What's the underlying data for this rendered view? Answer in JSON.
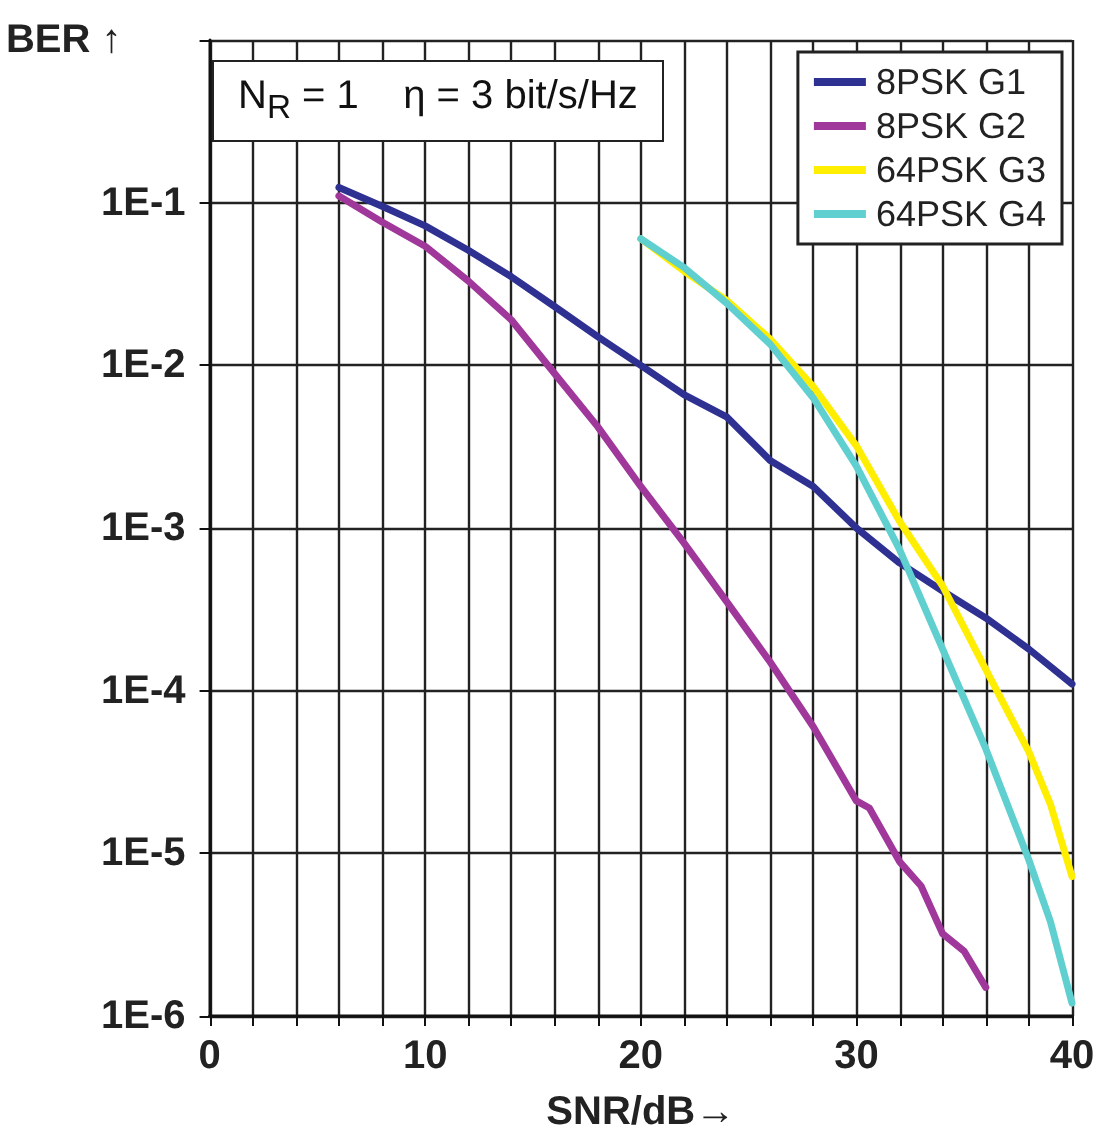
{
  "chart_data": {
    "type": "line",
    "xlabel": "SNR/dB→",
    "ylabel": "BER ↑",
    "annotations": [
      "N$_{R}$ = 1    η = 3 bit/s/Hz"
    ],
    "xlim": [
      0,
      40
    ],
    "xticks": [
      0,
      {
        "value": 2,
        "label": null
      },
      {
        "value": 4,
        "label": null
      },
      {
        "value": 6,
        "label": null
      },
      {
        "value": 8,
        "label": null
      },
      10,
      {
        "value": 12,
        "label": null
      },
      {
        "value": 14,
        "label": null
      },
      {
        "value": 16,
        "label": null
      },
      {
        "value": 18,
        "label": null
      },
      20,
      {
        "value": 22,
        "label": null
      },
      {
        "value": 24,
        "label": null
      },
      {
        "value": 26,
        "label": null
      },
      {
        "value": 28,
        "label": null
      },
      30,
      {
        "value": 32,
        "label": null
      },
      {
        "value": 34,
        "label": null
      },
      {
        "value": 36,
        "label": null
      },
      {
        "value": 38,
        "label": null
      },
      40
    ],
    "ylim": [
      1e-06,
      1
    ],
    "log": "y",
    "yticks": [
      {
        "value": 1e-06,
        "label": "1E-6"
      },
      {
        "value": 1e-05,
        "label": "1E-5"
      },
      {
        "value": 0.0001,
        "label": "1E-4"
      },
      {
        "value": 0.001,
        "label": "1E-3"
      },
      {
        "value": 0.01,
        "label": "1E-2"
      },
      {
        "value": 0.1,
        "label": "1E-1"
      },
      {
        "value": 1,
        "label": null
      }
    ],
    "grid": true,
    "legend": "top right",
    "marker": "none",
    "line_style": "solid",
    "series": [
      {
        "name": "8PSK G1",
        "color": "#2e3192",
        "x": [
          6,
          8,
          10,
          12,
          14,
          16,
          18,
          20,
          22,
          24,
          26,
          28,
          30,
          32,
          34,
          36,
          38,
          40
        ],
        "values": [
          0.124,
          0.095,
          0.072,
          0.051,
          0.035,
          0.023,
          0.015,
          0.01,
          0.0066,
          0.0048,
          0.0026,
          0.0018,
          0.001,
          0.00061,
          0.00041,
          0.00028,
          0.00018,
          0.00011
        ]
      },
      {
        "name": "8PSK G2",
        "color": "#a0379a",
        "x": [
          6,
          8,
          10,
          12,
          14,
          16,
          18,
          20,
          22,
          24,
          26,
          28,
          30,
          30.6,
          32,
          33,
          34,
          35,
          36
        ],
        "values": [
          0.11,
          0.076,
          0.054,
          0.033,
          0.019,
          0.0089,
          0.0042,
          0.0018,
          0.00081,
          0.00035,
          0.00015,
          6e-05,
          2.1e-05,
          1.9e-05,
          8.9e-06,
          6.3e-06,
          3.2e-06,
          2.5e-06,
          1.5e-06
        ]
      },
      {
        "name": "64PSK G3",
        "color": "#ffee00",
        "x": [
          20,
          22,
          24,
          26,
          28,
          30,
          32,
          34,
          36,
          38,
          39,
          40
        ],
        "values": [
          0.06,
          0.038,
          0.025,
          0.0145,
          0.0074,
          0.0032,
          0.0011,
          0.00044,
          0.000135,
          4.2e-05,
          2e-05,
          7.2e-06
        ]
      },
      {
        "name": "64PSK G4",
        "color": "#5fcfcf",
        "x": [
          20,
          22,
          24,
          26,
          28,
          30,
          32,
          34,
          36,
          38,
          39,
          40
        ],
        "values": [
          0.06,
          0.04,
          0.024,
          0.0135,
          0.0063,
          0.0024,
          0.00074,
          0.00018,
          4.4e-05,
          9.1e-06,
          3.8e-06,
          1.2e-06
        ]
      }
    ]
  }
}
